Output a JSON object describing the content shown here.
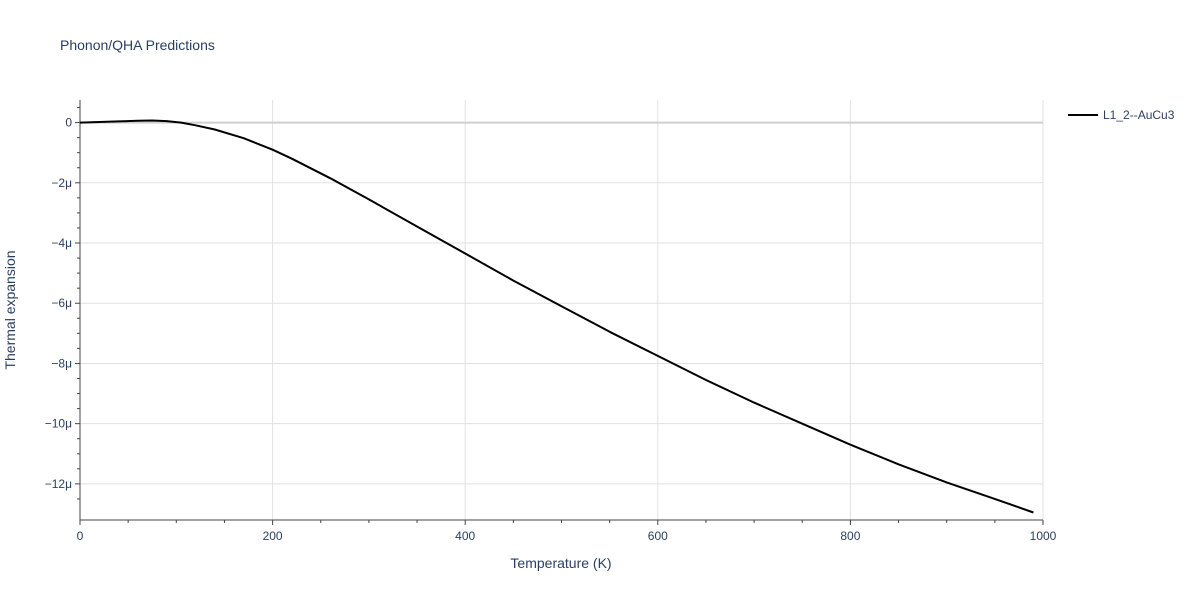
{
  "chart_data": {
    "type": "line",
    "title": "Phonon/QHA Predictions",
    "xlabel": "Temperature (K)",
    "ylabel": "Thermal expansion",
    "xlim": [
      0,
      1000
    ],
    "ylim": [
      -1.32e-05,
      7.5e-07
    ],
    "x_ticks": [
      0,
      200,
      400,
      600,
      800,
      1000
    ],
    "x_tick_labels": [
      "0",
      "200",
      "400",
      "600",
      "800",
      "1000"
    ],
    "y_ticks": [
      0,
      -2e-06,
      -4e-06,
      -6e-06,
      -8e-06,
      -1e-05,
      -1.2e-05
    ],
    "y_tick_labels": [
      "0",
      "−2μ",
      "−4μ",
      "−6μ",
      "−8μ",
      "−10μ",
      "−12μ"
    ],
    "grid": true,
    "legend_position": "top-right outside",
    "series": [
      {
        "name": "L1_2--AuCu3",
        "color": "#000000",
        "x": [
          0,
          20,
          40,
          60,
          75,
          90,
          105,
          120,
          140,
          170,
          200,
          220,
          260,
          300,
          350,
          400,
          450,
          500,
          550,
          600,
          650,
          700,
          750,
          800,
          850,
          900,
          950,
          990
        ],
        "y": [
          0,
          2e-08,
          4e-08,
          6e-08,
          7e-08,
          5e-08,
          0.0,
          -9e-08,
          -2.3e-07,
          -5.2e-07,
          -9e-07,
          -1.2e-06,
          -1.85e-06,
          -2.55e-06,
          -3.45e-06,
          -4.35e-06,
          -5.25e-06,
          -6.1e-06,
          -6.95e-06,
          -7.75e-06,
          -8.55e-06,
          -9.3e-06,
          -1e-05,
          -1.07e-05,
          -1.135e-05,
          -1.195e-05,
          -1.25e-05,
          -1.295e-05
        ]
      }
    ]
  }
}
